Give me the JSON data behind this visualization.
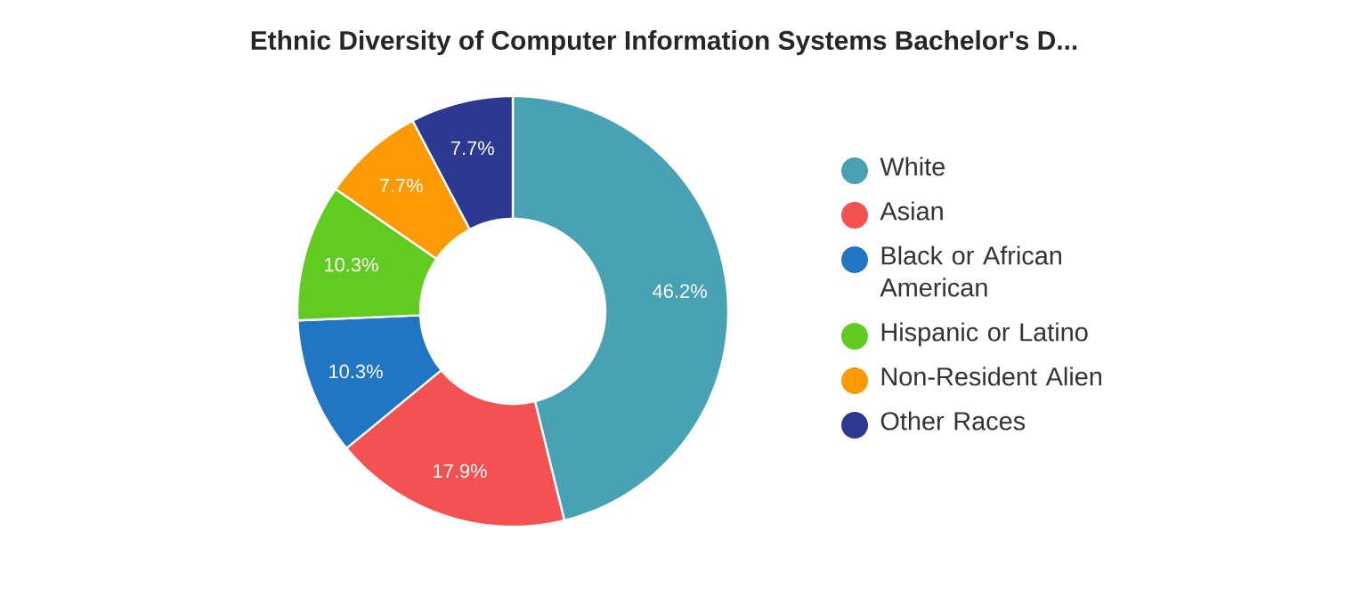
{
  "chart_data": {
    "type": "donut",
    "title": "Ethnic Diversity of Computer Information Systems Bachelor's D...",
    "categories": [
      "White",
      "Asian",
      "Black or African American",
      "Hispanic or Latino",
      "Non-Resident Alien",
      "Other Races"
    ],
    "values": [
      46.2,
      17.9,
      10.3,
      10.3,
      7.7,
      7.7
    ],
    "value_labels": [
      "46.2%",
      "17.9%",
      "10.3%",
      "10.3%",
      "7.7%",
      "7.7%"
    ],
    "colors": [
      "#49a1b4",
      "#f45252",
      "#2176c4",
      "#62cb21",
      "#fb9a05",
      "#2d3990"
    ],
    "legend": "right"
  }
}
